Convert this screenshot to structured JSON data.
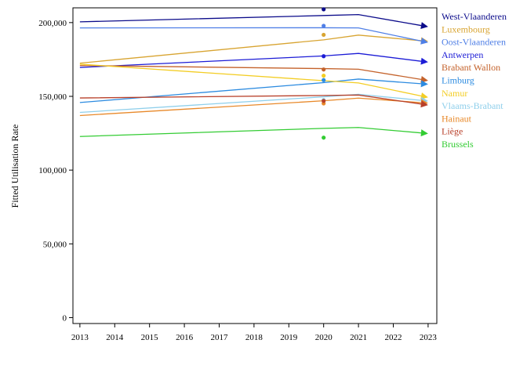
{
  "chart_data": {
    "type": "line",
    "title": "",
    "xlabel": "",
    "ylabel": "Fitted Utilisation Rate",
    "x": [
      2013,
      2020,
      2021,
      2023
    ],
    "xlim": [
      2012.8,
      2023.25
    ],
    "ylim": [
      -4000,
      210000
    ],
    "xticks": [
      "2013",
      "2014",
      "2015",
      "2016",
      "2017",
      "2018",
      "2019",
      "2020",
      "2021",
      "2022",
      "2023"
    ],
    "yticks": [
      {
        "value": 0,
        "label": "0"
      },
      {
        "value": 50000,
        "label": "50,000"
      },
      {
        "value": 100000,
        "label": "100,000"
      },
      {
        "value": 150000,
        "label": "150,000"
      },
      {
        "value": 200000,
        "label": "200,000"
      }
    ],
    "grid": false,
    "legend_position": "right",
    "series": [
      {
        "name": "West-Vlaanderen",
        "color": "#0b0b8a",
        "values": [
          200500,
          204800,
          205400,
          197200
        ],
        "point_2020": 209000
      },
      {
        "name": "Luxembourg",
        "color": "#d8a431",
        "values": [
          172500,
          188300,
          191500,
          187300
        ],
        "point_2020": 191700
      },
      {
        "name": "Oost-Vlaanderen",
        "color": "#4f7fe6",
        "values": [
          196400,
          196500,
          196400,
          186500
        ],
        "point_2020": 197800
      },
      {
        "name": "Antwerpen",
        "color": "#1c1cd6",
        "values": [
          169600,
          177400,
          179100,
          173200
        ],
        "point_2020": 177200
      },
      {
        "name": "Brabant Wallon",
        "color": "#c4622b",
        "values": [
          170900,
          168800,
          168400,
          160700
        ],
        "point_2020": 168200
      },
      {
        "name": "Limburg",
        "color": "#2c8be0",
        "values": [
          145800,
          159300,
          161700,
          158200
        ],
        "point_2020": 161000
      },
      {
        "name": "Namur",
        "color": "#f3cd24",
        "values": [
          171800,
          160600,
          159100,
          149300
        ],
        "point_2020": 164000
      },
      {
        "name": "Vlaams-Brabant",
        "color": "#8fcfeb",
        "values": [
          139100,
          149700,
          151400,
          146800
        ],
        "point_2020": 147500
      },
      {
        "name": "Hainaut",
        "color": "#e8892a",
        "values": [
          137000,
          147000,
          148800,
          145400
        ],
        "point_2020": 145200
      },
      {
        "name": "Liège",
        "color": "#b8402a",
        "values": [
          148900,
          150600,
          150900,
          144100
        ],
        "point_2020": 146900
      },
      {
        "name": "Brussels",
        "color": "#33cc33",
        "values": [
          122800,
          128300,
          128900,
          124800
        ],
        "point_2020": 122000
      }
    ]
  }
}
